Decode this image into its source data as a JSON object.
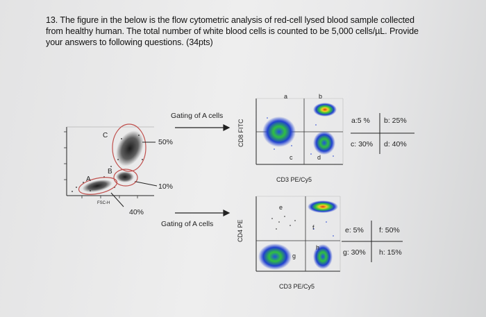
{
  "question": {
    "line1": "13. The figure in the below is the flow cytometric analysis of red-cell lysed blood sample collected",
    "line2": "from healthy human. The total number of white blood cells is counted to be 5,000 cells/µL. Provide",
    "line3": "your answers to following questions. (34pts)"
  },
  "scatter": {
    "labels": [
      "A",
      "B",
      "C"
    ],
    "pct_c": "50%",
    "pct_b": "10%",
    "pct_a": "40%",
    "x_axis": "FSC-H"
  },
  "gate_top": {
    "arrow_label": "Gating of A cells",
    "y_axis": "CD8 FITC",
    "x_axis": "CD3 PE/Cy5",
    "quadrants": [
      "a",
      "b",
      "c",
      "d"
    ],
    "results": {
      "a": "a:5 %",
      "b": "b: 25%",
      "c": "c: 30%",
      "d": "d: 40%"
    }
  },
  "gate_bottom": {
    "arrow_label": "Gating of A cells",
    "y_axis": "CD4 PE",
    "x_axis": "CD3 PE/Cy5",
    "quadrants": [
      "e",
      "f",
      "g",
      "h"
    ],
    "results": {
      "e": "e: 5%",
      "f": "f: 50%",
      "g": "g: 30%",
      "h": "h: 15%"
    }
  },
  "colors": {
    "dots": "#1a1a1a",
    "gate": "#c0504d",
    "density_hi": "#e03020",
    "density_mid": "#30c040",
    "density_lo": "#2040d0"
  }
}
